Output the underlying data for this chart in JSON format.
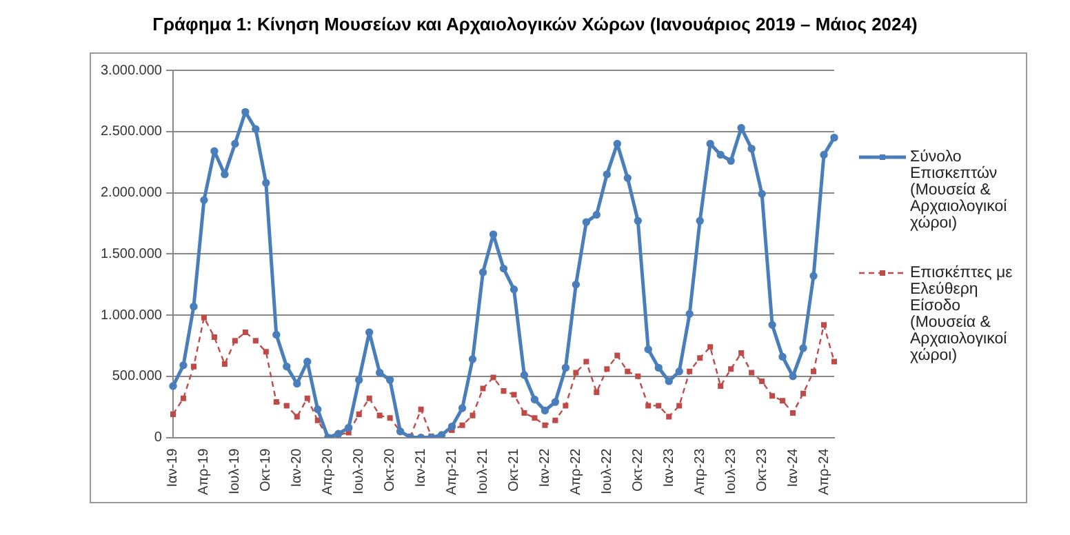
{
  "chart_data": {
    "type": "line",
    "title": "Γράφημα 1: Κίνηση Μουσείων και Αρχαιολογικών Χώρων (Ιανουάριος 2019 – Μάιος 2024)",
    "categories": [
      "Ιαν-19",
      null,
      null,
      "Απρ-19",
      null,
      null,
      "Ιουλ-19",
      null,
      null,
      "Οκτ-19",
      null,
      null,
      "Ιαν-20",
      null,
      null,
      "Απρ-20",
      null,
      null,
      "Ιουλ-20",
      null,
      null,
      "Οκτ-20",
      null,
      null,
      "Ιαν-21",
      null,
      null,
      "Απρ-21",
      null,
      null,
      "Ιουλ-21",
      null,
      null,
      "Οκτ-21",
      null,
      null,
      "Ιαν-22",
      null,
      null,
      "Απρ-22",
      null,
      null,
      "Ιουλ-22",
      null,
      null,
      "Οκτ-22",
      null,
      null,
      "Ιαν-23",
      null,
      null,
      "Απρ-23",
      null,
      null,
      "Ιουλ-23",
      null,
      null,
      "Οκτ-23",
      null,
      null,
      "Ιαν-24",
      null,
      null,
      "Απρ-24",
      null
    ],
    "series": [
      {
        "name": "Σύνολο Επισκεπτών (Μουσεία & Αρχαιολογικοί χώροι)",
        "color": "#4a7ebb",
        "line_style": "solid",
        "marker": "circle",
        "values": [
          420000,
          590000,
          1070000,
          1940000,
          2340000,
          2150000,
          2400000,
          2660000,
          2520000,
          2080000,
          840000,
          580000,
          440000,
          620000,
          230000,
          0,
          30000,
          80000,
          470000,
          860000,
          530000,
          470000,
          50000,
          0,
          0,
          0,
          20000,
          90000,
          240000,
          640000,
          1350000,
          1660000,
          1380000,
          1210000,
          510000,
          310000,
          220000,
          290000,
          570000,
          1250000,
          1760000,
          1820000,
          2150000,
          2400000,
          2120000,
          1770000,
          720000,
          570000,
          460000,
          540000,
          1010000,
          1770000,
          2400000,
          2310000,
          2260000,
          2530000,
          2360000,
          1990000,
          920000,
          660000,
          500000,
          730000,
          1320000,
          2310000,
          2450000
        ]
      },
      {
        "name": "Επισκέπτες με Ελεύθερη Είσοδο (Μουσεία & Αρχαιολογικοί χώροι)",
        "color": "#be4b48",
        "line_style": "dashed",
        "marker": "square",
        "values": [
          190000,
          320000,
          580000,
          980000,
          820000,
          600000,
          790000,
          860000,
          790000,
          700000,
          290000,
          260000,
          170000,
          320000,
          140000,
          0,
          20000,
          40000,
          190000,
          320000,
          180000,
          160000,
          50000,
          10000,
          230000,
          10000,
          20000,
          60000,
          100000,
          180000,
          400000,
          490000,
          380000,
          350000,
          200000,
          160000,
          100000,
          140000,
          260000,
          530000,
          620000,
          370000,
          560000,
          670000,
          540000,
          500000,
          260000,
          260000,
          170000,
          260000,
          540000,
          650000,
          740000,
          420000,
          560000,
          690000,
          530000,
          460000,
          340000,
          300000,
          200000,
          360000,
          540000,
          920000,
          620000
        ]
      }
    ],
    "ylim": [
      0,
      3000000
    ],
    "yticks": [
      {
        "value": 0,
        "label": "0"
      },
      {
        "value": 500000,
        "label": "500.000"
      },
      {
        "value": 1000000,
        "label": "1.000.000"
      },
      {
        "value": 1500000,
        "label": "1.500.000"
      },
      {
        "value": 2000000,
        "label": "2.000.000"
      },
      {
        "value": 2500000,
        "label": "2.500.000"
      },
      {
        "value": 3000000,
        "label": "3.000.000"
      }
    ],
    "grid": "y",
    "legend": "right"
  }
}
